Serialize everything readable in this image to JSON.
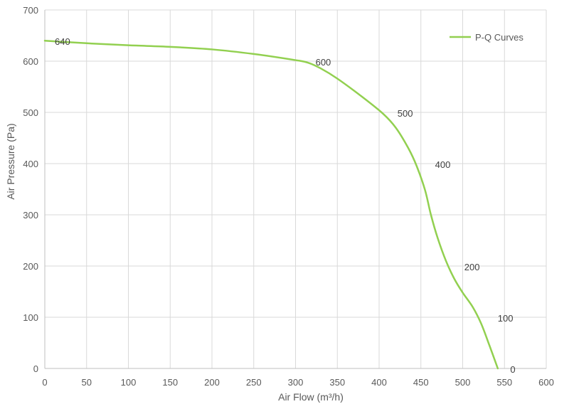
{
  "chart_data": {
    "type": "line",
    "title": "",
    "xlabel": "Air Flow  (m³/h)",
    "ylabel": "Air Pressure  (Pa)",
    "xlim": [
      0,
      600
    ],
    "ylim": [
      0,
      700
    ],
    "xticks": [
      0,
      50,
      100,
      150,
      200,
      250,
      300,
      350,
      400,
      450,
      500,
      550,
      600
    ],
    "yticks": [
      0,
      100,
      200,
      300,
      400,
      500,
      600,
      700
    ],
    "grid": true,
    "legend": {
      "position": "top-right",
      "entries": [
        "P-Q Curves"
      ]
    },
    "series": [
      {
        "name": "P-Q Curves",
        "color": "#92d050",
        "x": [
          0,
          50,
          100,
          150,
          200,
          250,
          300,
          315,
          330,
          350,
          380,
          405,
          420,
          435,
          445,
          455,
          462,
          470,
          480,
          490,
          500,
          512,
          522,
          532,
          542
        ],
        "y": [
          640,
          635,
          631,
          628,
          623,
          614,
          602,
          597,
          586,
          566,
          530,
          497,
          470,
          430,
          395,
          348,
          300,
          255,
          210,
          175,
          148,
          120,
          88,
          45,
          0
        ]
      }
    ],
    "data_labels": [
      {
        "text": "640",
        "x": 0,
        "y": 640
      },
      {
        "text": "600",
        "x": 312,
        "y": 600
      },
      {
        "text": "500",
        "x": 410,
        "y": 500
      },
      {
        "text": "400",
        "x": 455,
        "y": 400
      },
      {
        "text": "200",
        "x": 490,
        "y": 200
      },
      {
        "text": "100",
        "x": 530,
        "y": 100
      },
      {
        "text": "0",
        "x": 545,
        "y": 0
      }
    ]
  }
}
